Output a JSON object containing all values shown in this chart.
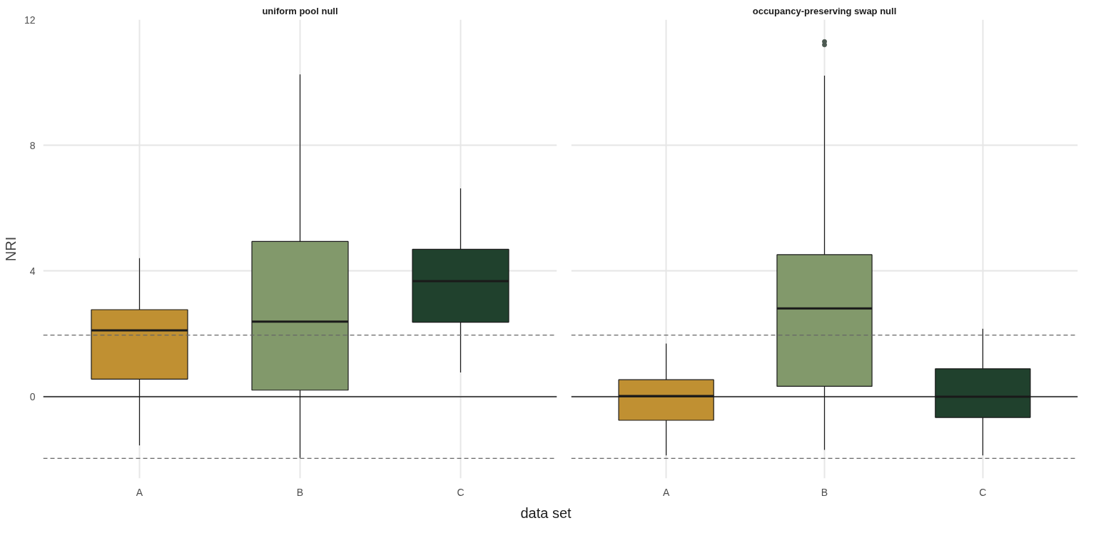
{
  "chart_data": [
    {
      "type": "box",
      "title": "uniform pool null",
      "ylabel": "NRI",
      "xlabel": "data set",
      "categories": [
        "A",
        "B",
        "C"
      ],
      "colors": [
        "#c09032",
        "#82996b",
        "#20412d"
      ],
      "boxes": [
        {
          "low": -1.55,
          "q1": 0.56,
          "median": 2.11,
          "q3": 2.77,
          "high": 4.41
        },
        {
          "low": -1.95,
          "q1": 0.21,
          "median": 2.39,
          "q3": 4.94,
          "high": 10.26
        },
        {
          "low": 0.77,
          "q1": 2.37,
          "median": 3.68,
          "q3": 4.69,
          "high": 6.63
        }
      ],
      "ylim": [
        -2.6,
        12.0
      ],
      "yticks": [
        0,
        4,
        8,
        12
      ],
      "grid": true,
      "ref_lines": [
        {
          "axis": "y",
          "value": 0,
          "label": null,
          "color": "#1a1a1a",
          "line_style": "solid"
        },
        {
          "axis": "y",
          "value": 1.96,
          "label": null,
          "color": "#666666",
          "line_style": "dashed"
        },
        {
          "axis": "y",
          "value": -1.96,
          "label": null,
          "color": "#666666",
          "line_style": "dashed"
        }
      ]
    },
    {
      "type": "box",
      "title": "occupancy-preserving swap null",
      "categories": [
        "A",
        "B",
        "C"
      ],
      "colors": [
        "#c09032",
        "#82996b",
        "#20412d"
      ],
      "boxes": [
        {
          "low": -1.87,
          "q1": -0.75,
          "median": 0.02,
          "q3": 0.54,
          "high": 1.69
        },
        {
          "low": -1.69,
          "q1": 0.33,
          "median": 2.81,
          "q3": 4.52,
          "high": 10.22,
          "outliers": [
            11.2,
            11.3
          ]
        },
        {
          "low": -1.87,
          "q1": -0.66,
          "median": 0.0,
          "q3": 0.89,
          "high": 2.16
        }
      ],
      "ylim": [
        -2.6,
        12.0
      ],
      "tick_labels": "x",
      "grid": true,
      "ref_lines": [
        {
          "axis": "y",
          "value": 0,
          "label": null,
          "color": "#1a1a1a",
          "line_style": "solid"
        },
        {
          "axis": "y",
          "value": 1.96,
          "label": null,
          "color": "#666666",
          "line_style": "dashed"
        },
        {
          "axis": "y",
          "value": -1.96,
          "label": null,
          "color": "#666666",
          "line_style": "dashed"
        }
      ]
    }
  ]
}
